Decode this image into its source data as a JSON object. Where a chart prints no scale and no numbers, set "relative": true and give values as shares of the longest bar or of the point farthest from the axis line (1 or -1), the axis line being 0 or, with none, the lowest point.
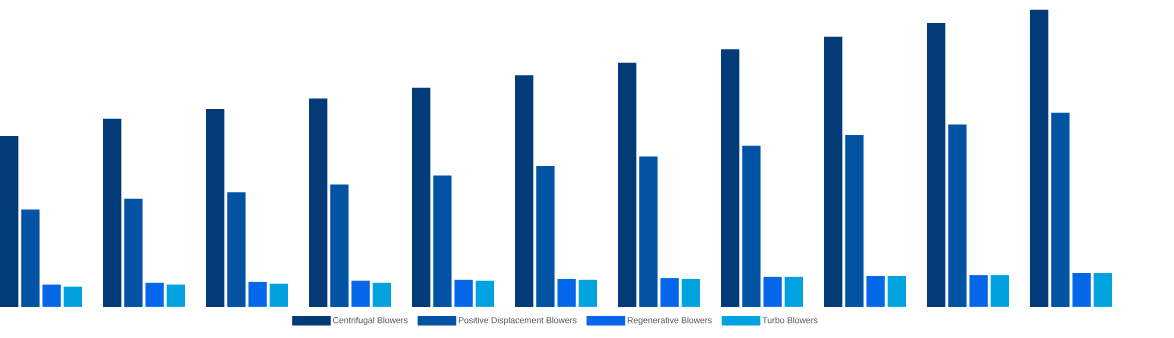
{
  "chart_data": {
    "type": "bar",
    "relative": true,
    "legend": "bottom",
    "categories": [
      null,
      null,
      null,
      null,
      null,
      null,
      null,
      null,
      null,
      null,
      null
    ],
    "series": [
      {
        "name": "Centrifugal Blowers",
        "color": "#023b78",
        "values": [
          0.575,
          0.633,
          0.666,
          0.701,
          0.737,
          0.779,
          0.821,
          0.867,
          0.909,
          0.955,
          1
        ]
      },
      {
        "name": "Positive Displacement Blowers",
        "color": "#0353a4",
        "values": [
          0.328,
          0.364,
          0.386,
          0.412,
          0.442,
          0.474,
          0.506,
          0.542,
          0.578,
          0.614,
          0.653
        ]
      },
      {
        "name": "Regenerative Blowers",
        "color": "#0466e8",
        "values": [
          0.075,
          0.081,
          0.084,
          0.088,
          0.091,
          0.094,
          0.097,
          0.101,
          0.104,
          0.107,
          0.114
        ]
      },
      {
        "name": "Turbo Blowers",
        "color": "#00a3e0",
        "values": [
          0.068,
          0.075,
          0.078,
          0.081,
          0.088,
          0.091,
          0.094,
          0.101,
          0.104,
          0.107,
          0.114
        ]
      }
    ]
  }
}
